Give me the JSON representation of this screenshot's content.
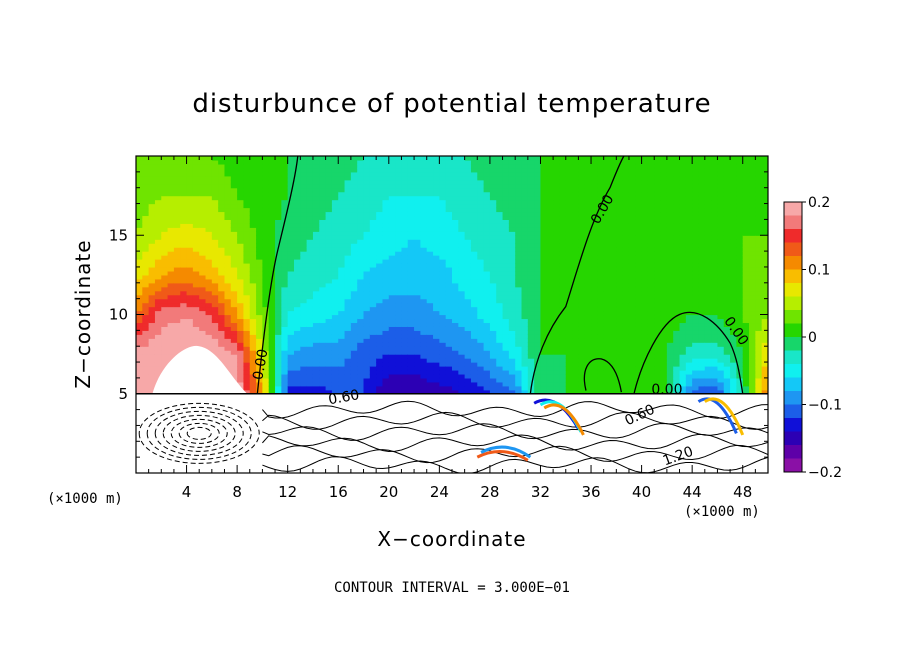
{
  "chart_data": {
    "type": "heatmap",
    "title": "disturbunce of potential temperature",
    "xlabel": "X−coordinate",
    "ylabel": "Z−coordinate",
    "xunit": "(×1000 m)",
    "xlim": [
      0,
      50
    ],
    "ylim": [
      0,
      20
    ],
    "xticks": [
      4,
      8,
      12,
      16,
      20,
      24,
      28,
      32,
      36,
      40,
      44,
      48
    ],
    "yticks": [
      5,
      10,
      15
    ],
    "colorbar": {
      "min": -0.2,
      "max": 0.2,
      "ticks": [
        "0.2",
        "0.1",
        "0",
        "−0.1",
        "−0.2"
      ],
      "tick_values": [
        0.2,
        0.1,
        0.0,
        -0.1,
        -0.2
      ],
      "colors": [
        "#f7a8a8",
        "#f27a7a",
        "#ef2b2b",
        "#f05a18",
        "#f58a00",
        "#f9bd00",
        "#e8e800",
        "#b6ee00",
        "#6fe400",
        "#26d600",
        "#17d66a",
        "#19e6c8",
        "#10f0ef",
        "#14c8f7",
        "#1e96f2",
        "#1c5ee8",
        "#1010d8",
        "#2c00b4",
        "#5e00a8",
        "#8a10a6"
      ]
    },
    "contour_interval": "CONTOUR INTERVAL = 3.000E−01",
    "contour_labels": [
      "0.00",
      "0.00",
      "0.00",
      "0.00",
      "0.60",
      "0.60",
      "1.20"
    ],
    "upper_layer_field": {
      "x": [
        0,
        2,
        4,
        6,
        8,
        10,
        12,
        14,
        16,
        18,
        20,
        22,
        24,
        26,
        28,
        30,
        32,
        34,
        36,
        38,
        40,
        42,
        44,
        46,
        48,
        50
      ],
      "z": [
        5,
        7.5,
        10,
        12.5,
        15,
        17.5,
        20
      ],
      "values": [
        [
          0.2,
          0.2,
          0.2,
          0.2,
          0.2,
          0.1,
          -0.13,
          -0.13,
          -0.12,
          -0.12,
          -0.16,
          -0.16,
          -0.15,
          -0.14,
          -0.12,
          -0.1,
          0.0,
          0.0,
          0.02,
          0.02,
          0.02,
          0.0,
          -0.11,
          -0.12,
          -0.02,
          0.12
        ],
        [
          0.19,
          0.2,
          0.2,
          0.2,
          0.18,
          0.06,
          -0.08,
          -0.09,
          -0.09,
          -0.11,
          -0.12,
          -0.12,
          -0.11,
          -0.1,
          -0.08,
          -0.05,
          0.0,
          0.0,
          0.02,
          0.02,
          0.02,
          0.0,
          -0.03,
          -0.03,
          0.0,
          0.08
        ],
        [
          0.12,
          0.17,
          0.18,
          0.16,
          0.1,
          0.03,
          -0.04,
          -0.05,
          -0.06,
          -0.08,
          -0.09,
          -0.09,
          -0.08,
          -0.07,
          -0.05,
          -0.03,
          0.0,
          0.01,
          0.02,
          0.02,
          0.02,
          0.01,
          0.0,
          0.0,
          0.02,
          0.04
        ],
        [
          0.07,
          0.1,
          0.11,
          0.09,
          0.06,
          0.02,
          -0.02,
          -0.03,
          -0.04,
          -0.06,
          -0.07,
          -0.07,
          -0.07,
          -0.05,
          -0.04,
          -0.02,
          0.0,
          0.01,
          0.02,
          0.02,
          0.02,
          0.01,
          0.01,
          0.01,
          0.02,
          0.03
        ],
        [
          0.04,
          0.06,
          0.07,
          0.06,
          0.04,
          0.01,
          -0.01,
          -0.02,
          -0.03,
          -0.04,
          -0.05,
          -0.06,
          -0.05,
          -0.04,
          -0.03,
          -0.02,
          0.0,
          0.01,
          0.01,
          0.02,
          0.02,
          0.01,
          0.01,
          0.01,
          0.02,
          0.02
        ],
        [
          0.03,
          0.04,
          0.04,
          0.04,
          0.02,
          0.01,
          0.0,
          -0.01,
          -0.02,
          -0.03,
          -0.04,
          -0.04,
          -0.04,
          -0.03,
          -0.02,
          -0.01,
          0.0,
          0.01,
          0.01,
          0.01,
          0.01,
          0.01,
          0.01,
          0.01,
          0.01,
          0.02
        ],
        [
          0.02,
          0.02,
          0.02,
          0.02,
          0.01,
          0.01,
          0.0,
          -0.01,
          -0.01,
          -0.02,
          -0.03,
          -0.03,
          -0.03,
          -0.02,
          -0.01,
          -0.01,
          0.0,
          0.0,
          0.01,
          0.01,
          0.01,
          0.01,
          0.01,
          0.01,
          0.01,
          0.01
        ]
      ]
    }
  }
}
